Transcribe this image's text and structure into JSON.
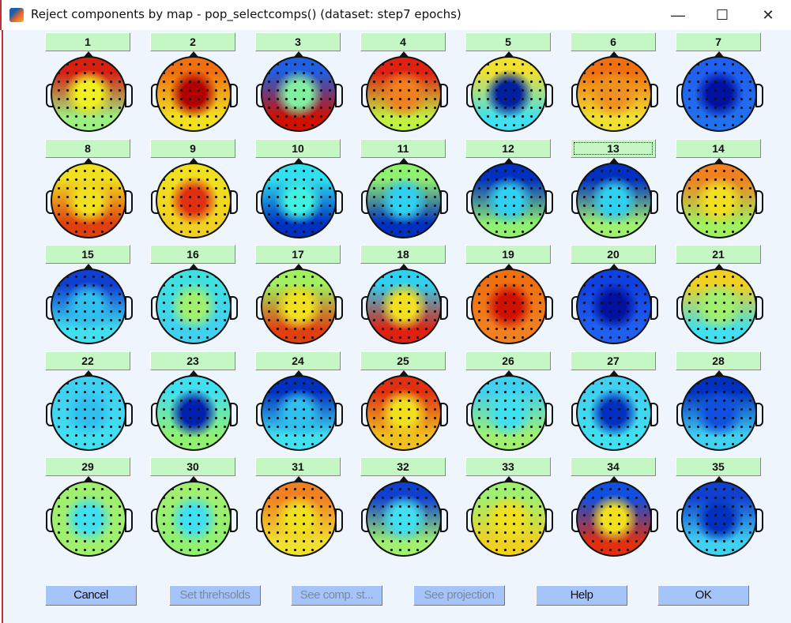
{
  "window": {
    "title": "Reject components by map - pop_selectcomps() (dataset: step7  epochs)",
    "minimize": "—",
    "maximize": "☐",
    "close": "✕"
  },
  "focused_component": "13",
  "components": [
    {
      "label": "1",
      "colors": [
        "#d82010",
        "#f0f020",
        "#9cf080"
      ]
    },
    {
      "label": "2",
      "colors": [
        "#f07010",
        "#b00000",
        "#f0e020"
      ]
    },
    {
      "label": "3",
      "colors": [
        "#2060e0",
        "#80f0a0",
        "#d01000"
      ]
    },
    {
      "label": "4",
      "colors": [
        "#e02010",
        "#f08020",
        "#c0f040"
      ]
    },
    {
      "label": "5",
      "colors": [
        "#f0e030",
        "#0020a0",
        "#40e0f0"
      ]
    },
    {
      "label": "6",
      "colors": [
        "#f07010",
        "#f09020",
        "#f0e030"
      ]
    },
    {
      "label": "7",
      "colors": [
        "#2060f0",
        "#0010a0",
        "#2070f0"
      ]
    },
    {
      "label": "8",
      "colors": [
        "#f0e020",
        "#f0e020",
        "#e04010"
      ]
    },
    {
      "label": "9",
      "colors": [
        "#f0e020",
        "#e03010",
        "#f0d020"
      ]
    },
    {
      "label": "10",
      "colors": [
        "#30e0f0",
        "#40f0e0",
        "#0030c0"
      ]
    },
    {
      "label": "11",
      "colors": [
        "#90f070",
        "#30d0f0",
        "#0030c0"
      ]
    },
    {
      "label": "12",
      "colors": [
        "#0030c0",
        "#30d0f0",
        "#90f070"
      ]
    },
    {
      "label": "13",
      "colors": [
        "#0030c0",
        "#30d0f0",
        "#a0f070"
      ]
    },
    {
      "label": "14",
      "colors": [
        "#f08020",
        "#f0e020",
        "#a0f060"
      ]
    },
    {
      "label": "15",
      "colors": [
        "#1040d0",
        "#30c0f0",
        "#40e0f0"
      ]
    },
    {
      "label": "16",
      "colors": [
        "#40e0e0",
        "#a0f070",
        "#40d0f0"
      ]
    },
    {
      "label": "17",
      "colors": [
        "#a0f060",
        "#f0e020",
        "#e04010"
      ]
    },
    {
      "label": "18",
      "colors": [
        "#30d0f0",
        "#f0e020",
        "#e02010"
      ]
    },
    {
      "label": "19",
      "colors": [
        "#f07010",
        "#d01000",
        "#f08020"
      ]
    },
    {
      "label": "20",
      "colors": [
        "#1040e0",
        "#0010a0",
        "#2060f0"
      ]
    },
    {
      "label": "21",
      "colors": [
        "#f0d020",
        "#a0f070",
        "#40e0f0"
      ]
    },
    {
      "label": "22",
      "colors": [
        "#40d0f0",
        "#30c0f0",
        "#40e0f0"
      ]
    },
    {
      "label": "23",
      "colors": [
        "#40e0f0",
        "#0020b0",
        "#90f070"
      ]
    },
    {
      "label": "24",
      "colors": [
        "#0030c0",
        "#30c0f0",
        "#40e0f0"
      ]
    },
    {
      "label": "25",
      "colors": [
        "#e03010",
        "#f0e020",
        "#f0c020"
      ]
    },
    {
      "label": "26",
      "colors": [
        "#40d0f0",
        "#40e0f0",
        "#a0f070"
      ]
    },
    {
      "label": "27",
      "colors": [
        "#40d0f0",
        "#0030c0",
        "#40e0f0"
      ]
    },
    {
      "label": "28",
      "colors": [
        "#0030c0",
        "#1050e0",
        "#40d0f0"
      ]
    },
    {
      "label": "29",
      "colors": [
        "#a0f070",
        "#40e0f0",
        "#a0f070"
      ]
    },
    {
      "label": "30",
      "colors": [
        "#a0f070",
        "#40e0f0",
        "#90f070"
      ]
    },
    {
      "label": "31",
      "colors": [
        "#f08020",
        "#f0e020",
        "#f0e030"
      ]
    },
    {
      "label": "32",
      "colors": [
        "#1040d0",
        "#40e0f0",
        "#a0f070"
      ]
    },
    {
      "label": "33",
      "colors": [
        "#a0f070",
        "#f0e020",
        "#f0d020"
      ]
    },
    {
      "label": "34",
      "colors": [
        "#1050e0",
        "#f0e020",
        "#e03010"
      ]
    },
    {
      "label": "35",
      "colors": [
        "#1040d0",
        "#0030c0",
        "#40d0f0"
      ]
    }
  ],
  "buttons": {
    "cancel": "Cancel",
    "set_thresholds": "Set threhsolds",
    "see_comp_stats": "See comp. st...",
    "see_projection": "See projection",
    "help": "Help",
    "ok": "OK"
  }
}
